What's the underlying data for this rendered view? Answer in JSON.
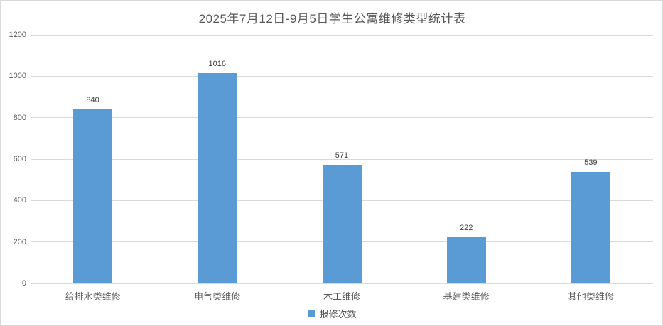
{
  "chart": {
    "title": "2025年7月12日-9月5日学生公寓维修类型统计表",
    "legend_label": "报修次数",
    "colors": {
      "bar": "#5B9BD5",
      "gridline": "#D9D9D9",
      "title_text": "#595959",
      "axis_text": "#595959",
      "data_label_text": "#404040",
      "background": "#FFFFFF"
    }
  },
  "chart_data": {
    "type": "bar",
    "title": "2025年7月12日-9月5日学生公寓维修类型统计表",
    "categories": [
      "给排水类维修",
      "电气类维修",
      "木工维修",
      "基建类维修",
      "其他类维修"
    ],
    "series": [
      {
        "name": "报修次数",
        "values": [
          840,
          1016,
          571,
          222,
          539
        ]
      }
    ],
    "data_labels": [
      "840",
      "1016",
      "571",
      "222",
      "539"
    ],
    "xlabel": "",
    "ylabel": "",
    "ylim": [
      0,
      1200
    ],
    "yticks": [
      0,
      200,
      400,
      600,
      800,
      1000,
      1200
    ],
    "grid": true,
    "legend_position": "bottom"
  }
}
